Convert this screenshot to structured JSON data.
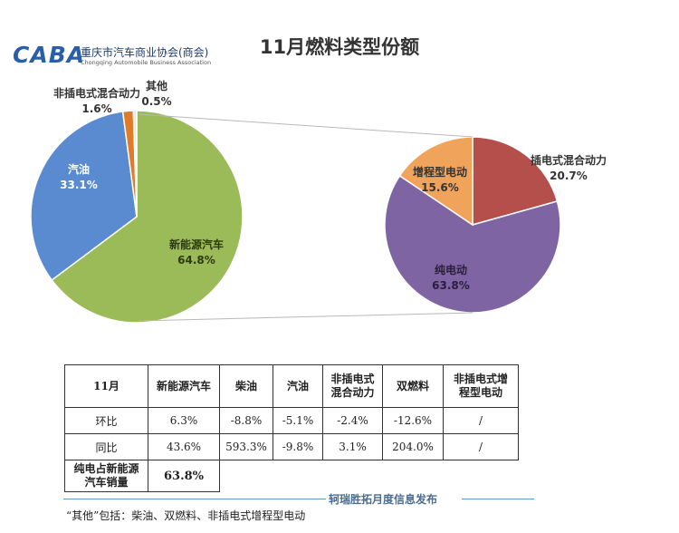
{
  "logo": {
    "mark": "CABA",
    "org": "重庆市汽车商业协会(商会)",
    "org_en": "Chongqing Automobile Business Association"
  },
  "title": "11月燃料类型份额",
  "chart_data": [
    {
      "type": "pie",
      "slices": [
        {
          "label": "新能源汽车",
          "pct_text": "64.8%",
          "value": 64.8,
          "color": "#9bbb59"
        },
        {
          "label": "汽油",
          "pct_text": "33.1%",
          "value": 33.1,
          "color": "#5a8bd0"
        },
        {
          "label": "非插电式混合动力",
          "pct_text": "1.6%",
          "value": 1.6,
          "color": "#e07b27"
        },
        {
          "label": "其他",
          "pct_text": "0.5%",
          "value": 0.5,
          "color": "#e8e8e8"
        }
      ]
    },
    {
      "type": "pie",
      "slices": [
        {
          "label": "插电式混合动力",
          "pct_text": "20.7%",
          "value": 20.7,
          "color": "#b44f4b"
        },
        {
          "label": "纯电动",
          "pct_text": "63.8%",
          "value": 63.8,
          "color": "#7f64a3"
        },
        {
          "label": "增程型电动",
          "pct_text": "15.6%",
          "value": 15.6,
          "color": "#f0a35a"
        }
      ]
    }
  ],
  "table": {
    "headers": [
      "11月",
      "新能源汽车",
      "柴油",
      "汽油",
      "非插电式混合动力",
      "双燃料",
      "非插电式增程型电动"
    ],
    "header_lines": [
      [
        "11月"
      ],
      [
        "新能源汽车"
      ],
      [
        "柴油"
      ],
      [
        "汽油"
      ],
      [
        "非插电式",
        "混合动力"
      ],
      [
        "双燃料"
      ],
      [
        "非插电式增",
        "程型电动"
      ]
    ],
    "rows": [
      [
        "环比",
        "6.3%",
        "-8.8%",
        "-5.1%",
        "-2.4%",
        "-12.6%",
        "/"
      ],
      [
        "同比",
        "43.6%",
        "593.3%",
        "-9.8%",
        "3.1%",
        "204.0%",
        "/"
      ]
    ],
    "last_row_label_lines": [
      "纯电占新能源",
      "汽车销量"
    ],
    "last_row_value": "63.8%"
  },
  "source": "轲瑞胜拓月度信息发布",
  "footnote": "“其他”包括：柴油、双燃料、非插电式增程型电动"
}
